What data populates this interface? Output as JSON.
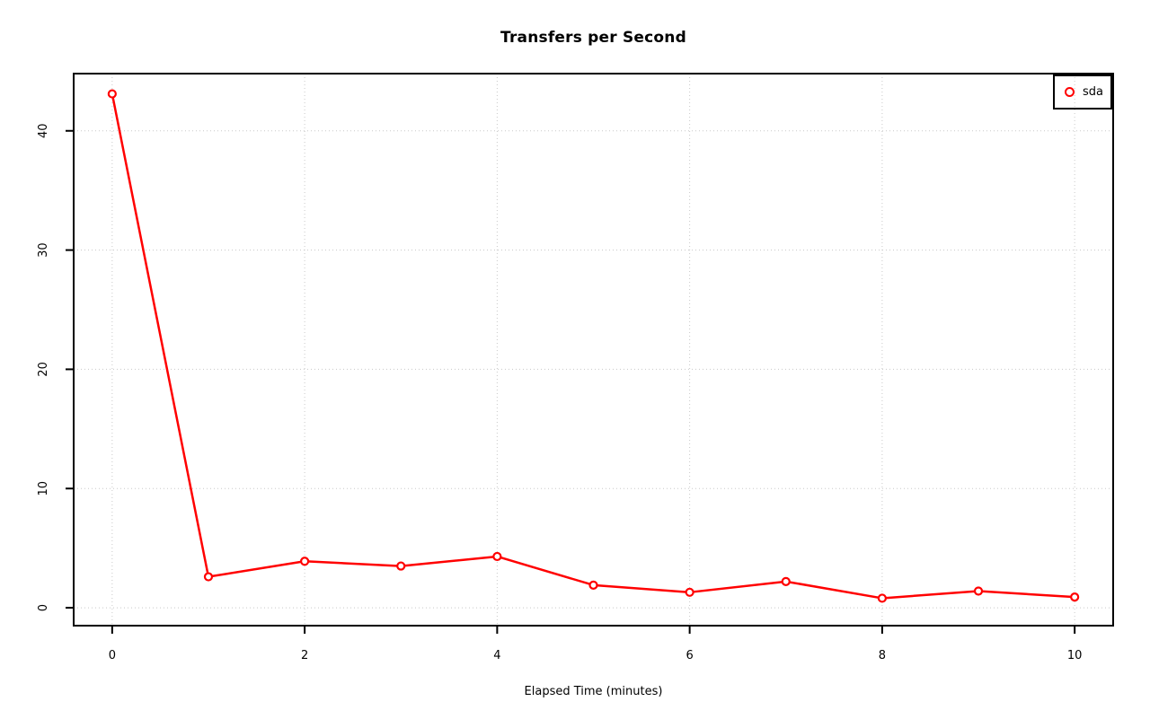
{
  "chart_data": {
    "type": "line",
    "title": "Transfers per Second",
    "xlabel": "Elapsed Time (minutes)",
    "ylabel": "",
    "x": [
      0,
      1,
      2,
      3,
      4,
      5,
      6,
      7,
      8,
      9,
      10
    ],
    "series": [
      {
        "name": "sda",
        "color": "#ff0000",
        "marker": "open-circle",
        "values": [
          43.1,
          2.6,
          3.9,
          3.5,
          4.3,
          1.9,
          1.3,
          2.2,
          0.8,
          1.4,
          0.9
        ]
      }
    ],
    "xlim": [
      -0.4,
      10.4
    ],
    "ylim": [
      -1.5,
      44.8
    ],
    "xticks": [
      "0",
      "2",
      "4",
      "6",
      "8",
      "10"
    ],
    "xtick_values": [
      0,
      2,
      4,
      6,
      8,
      10
    ],
    "yticks": [
      "0",
      "10",
      "20",
      "30",
      "40"
    ],
    "ytick_values": [
      0,
      10,
      20,
      30,
      40
    ],
    "grid": true,
    "grid_style": "dotted",
    "grid_color": "#c8c8c8",
    "axis_color": "#000000",
    "background": "#ffffff",
    "legend": {
      "position": "top-right",
      "entries": [
        "sda"
      ]
    }
  }
}
